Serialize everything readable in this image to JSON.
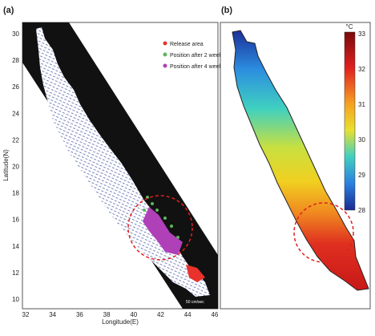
{
  "panel_a": {
    "label": "(a)",
    "x_axis_label": "Longitude(E)",
    "y_axis_label": "Latitude(N)",
    "xticks": [
      "32",
      "34",
      "36",
      "38",
      "40",
      "42",
      "44",
      "46"
    ],
    "yticks": [
      "30",
      "28",
      "26",
      "24",
      "22",
      "20",
      "18",
      "16",
      "14",
      "12",
      "10"
    ],
    "legend": [
      {
        "label": "Release area",
        "color": "#e8322b"
      },
      {
        "label": "Position after 2 weeks",
        "color": "#5cb85c"
      },
      {
        "label": "Position after 4 weeks",
        "color": "#b040b8"
      }
    ],
    "scale_label": "50 cm/sec"
  },
  "panel_b": {
    "label": "(b)",
    "colorbar_unit": "°C",
    "colorbar_ticks": [
      "33",
      "32",
      "31",
      "30",
      "29",
      "28"
    ]
  }
}
